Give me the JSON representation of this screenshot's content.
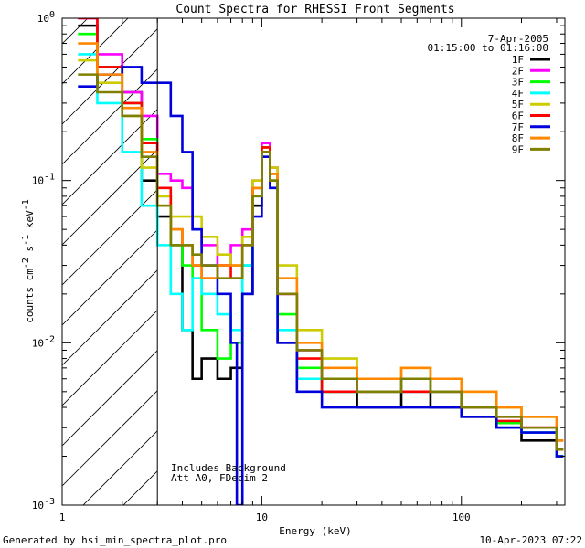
{
  "chart_data": {
    "type": "line",
    "title": "Count Spectra for RHESSI Front Segments",
    "xlabel": "Energy (keV)",
    "ylabel": "counts cm-2 s-1 keV-1",
    "ylabel_parts": {
      "base": "counts cm",
      "exp1": "-2",
      "mid": " s",
      "exp2": "-1",
      "mid2": " keV",
      "exp3": "-1"
    },
    "xscale": "log",
    "yscale": "log",
    "xlim": [
      1,
      330
    ],
    "ylim": [
      0.001,
      1
    ],
    "x_ticks": [
      {
        "value": 1,
        "label": "1"
      },
      {
        "value": 10,
        "label": "10"
      },
      {
        "value": 100,
        "label": "100"
      }
    ],
    "y_ticks": [
      {
        "value": 1,
        "label": "10",
        "exp": "0"
      },
      {
        "value": 0.1,
        "label": "10",
        "exp": "-1"
      },
      {
        "value": 0.01,
        "label": "10",
        "exp": "-2"
      },
      {
        "value": 0.001,
        "label": "10",
        "exp": "-3"
      }
    ],
    "hatched_region": {
      "x_range": [
        1,
        3
      ]
    },
    "annotations": {
      "date": "7-Apr-2005",
      "time_range": "01:15:00 to 01:16:00",
      "background_note": "Includes Background",
      "atten_note": "Att A0, FDecim 2"
    },
    "legend_position": "top-right",
    "series": [
      {
        "name": "1F",
        "color": "#000000",
        "values": [
          [
            1.2,
            0.9
          ],
          [
            1.5,
            0.5
          ],
          [
            2,
            0.35
          ],
          [
            2.5,
            0.1
          ],
          [
            3,
            0.06
          ],
          [
            3.5,
            0.04
          ],
          [
            4,
            0.012
          ],
          [
            4.5,
            0.006
          ],
          [
            5,
            0.008
          ],
          [
            6,
            0.006
          ],
          [
            7,
            0.007
          ],
          [
            8,
            0.02
          ],
          [
            9,
            0.07
          ],
          [
            10,
            0.15
          ],
          [
            11,
            0.1
          ],
          [
            12,
            0.01
          ],
          [
            15,
            0.006
          ],
          [
            20,
            0.005
          ],
          [
            30,
            0.004
          ],
          [
            50,
            0.005
          ],
          [
            70,
            0.004
          ],
          [
            100,
            0.0035
          ],
          [
            150,
            0.003
          ],
          [
            200,
            0.0025
          ],
          [
            300,
            0.002
          ]
        ]
      },
      {
        "name": "2F",
        "color": "#ff00ff",
        "values": [
          [
            1.2,
            1
          ],
          [
            1.5,
            0.6
          ],
          [
            2,
            0.35
          ],
          [
            2.5,
            0.25
          ],
          [
            3,
            0.11
          ],
          [
            3.5,
            0.1
          ],
          [
            4,
            0.09
          ],
          [
            4.5,
            0.05
          ],
          [
            5,
            0.04
          ],
          [
            6,
            0.03
          ],
          [
            7,
            0.04
          ],
          [
            8,
            0.05
          ],
          [
            9,
            0.1
          ],
          [
            10,
            0.17
          ],
          [
            11,
            0.12
          ],
          [
            12,
            0.02
          ],
          [
            15,
            0.009
          ],
          [
            20,
            0.006
          ],
          [
            30,
            0.005
          ],
          [
            50,
            0.006
          ],
          [
            70,
            0.005
          ],
          [
            100,
            0.004
          ],
          [
            150,
            0.0035
          ],
          [
            200,
            0.003
          ],
          [
            300,
            0.0025
          ]
        ]
      },
      {
        "name": "3F",
        "color": "#00ff00",
        "values": [
          [
            1.2,
            0.8
          ],
          [
            1.5,
            0.5
          ],
          [
            2,
            0.3
          ],
          [
            2.5,
            0.18
          ],
          [
            3,
            0.08
          ],
          [
            3.5,
            0.04
          ],
          [
            4,
            0.03
          ],
          [
            4.5,
            0.025
          ],
          [
            5,
            0.012
          ],
          [
            6,
            0.008
          ],
          [
            7,
            0.01
          ],
          [
            8,
            0.03
          ],
          [
            9,
            0.09
          ],
          [
            10,
            0.16
          ],
          [
            11,
            0.11
          ],
          [
            12,
            0.015
          ],
          [
            15,
            0.007
          ],
          [
            20,
            0.005
          ],
          [
            30,
            0.005
          ],
          [
            50,
            0.006
          ],
          [
            70,
            0.005
          ],
          [
            100,
            0.004
          ],
          [
            150,
            0.0032
          ],
          [
            200,
            0.0028
          ],
          [
            300,
            0.002
          ]
        ]
      },
      {
        "name": "4F",
        "color": "#00ffff",
        "values": [
          [
            1.2,
            0.6
          ],
          [
            1.5,
            0.3
          ],
          [
            2,
            0.15
          ],
          [
            2.5,
            0.07
          ],
          [
            3,
            0.04
          ],
          [
            3.5,
            0.02
          ],
          [
            4,
            0.012
          ],
          [
            4.5,
            0.025
          ],
          [
            5,
            0.02
          ],
          [
            6,
            0.015
          ],
          [
            7,
            0.012
          ],
          [
            8,
            0.03
          ],
          [
            9,
            0.08
          ],
          [
            10,
            0.14
          ],
          [
            11,
            0.1
          ],
          [
            12,
            0.012
          ],
          [
            15,
            0.006
          ],
          [
            20,
            0.005
          ],
          [
            30,
            0.005
          ],
          [
            50,
            0.005
          ],
          [
            70,
            0.005
          ],
          [
            100,
            0.004
          ],
          [
            150,
            0.003
          ],
          [
            200,
            0.0028
          ],
          [
            300,
            0.002
          ]
        ]
      },
      {
        "name": "5F",
        "color": "#cccc00",
        "values": [
          [
            1.2,
            0.55
          ],
          [
            1.5,
            0.4
          ],
          [
            2,
            0.25
          ],
          [
            2.5,
            0.12
          ],
          [
            3,
            0.08
          ],
          [
            3.5,
            0.06
          ],
          [
            4,
            0.06
          ],
          [
            4.5,
            0.06
          ],
          [
            5,
            0.045
          ],
          [
            6,
            0.035
          ],
          [
            7,
            0.03
          ],
          [
            8,
            0.045
          ],
          [
            9,
            0.1
          ],
          [
            10,
            0.16
          ],
          [
            11,
            0.12
          ],
          [
            12,
            0.03
          ],
          [
            15,
            0.012
          ],
          [
            20,
            0.008
          ],
          [
            30,
            0.006
          ],
          [
            50,
            0.007
          ],
          [
            70,
            0.006
          ],
          [
            100,
            0.005
          ],
          [
            150,
            0.004
          ],
          [
            200,
            0.0035
          ],
          [
            300,
            0.0025
          ]
        ]
      },
      {
        "name": "6F",
        "color": "#ff0000",
        "values": [
          [
            1.2,
            1
          ],
          [
            1.5,
            0.5
          ],
          [
            2,
            0.3
          ],
          [
            2.5,
            0.17
          ],
          [
            3,
            0.09
          ],
          [
            3.5,
            0.05
          ],
          [
            4,
            0.04
          ],
          [
            4.5,
            0.03
          ],
          [
            5,
            0.025
          ],
          [
            6,
            0.03
          ],
          [
            7,
            0.025
          ],
          [
            8,
            0.04
          ],
          [
            9,
            0.09
          ],
          [
            10,
            0.16
          ],
          [
            11,
            0.11
          ],
          [
            12,
            0.02
          ],
          [
            15,
            0.008
          ],
          [
            20,
            0.005
          ],
          [
            30,
            0.005
          ],
          [
            50,
            0.005
          ],
          [
            70,
            0.005
          ],
          [
            100,
            0.004
          ],
          [
            150,
            0.0033
          ],
          [
            200,
            0.003
          ],
          [
            300,
            0.0022
          ]
        ]
      },
      {
        "name": "7F",
        "color": "#0000dd",
        "values": [
          [
            1.2,
            0.38
          ],
          [
            1.5,
            0.45
          ],
          [
            2,
            0.5
          ],
          [
            2.5,
            0.4
          ],
          [
            3,
            0.4
          ],
          [
            3.5,
            0.25
          ],
          [
            4,
            0.15
          ],
          [
            4.5,
            0.05
          ],
          [
            5,
            0.03
          ],
          [
            6,
            0.02
          ],
          [
            7,
            0.01
          ],
          [
            7.5,
            0.001
          ],
          [
            8,
            0.02
          ],
          [
            9,
            0.06
          ],
          [
            10,
            0.14
          ],
          [
            11,
            0.09
          ],
          [
            12,
            0.01
          ],
          [
            15,
            0.005
          ],
          [
            20,
            0.004
          ],
          [
            30,
            0.004
          ],
          [
            50,
            0.004
          ],
          [
            70,
            0.004
          ],
          [
            100,
            0.0035
          ],
          [
            150,
            0.003
          ],
          [
            200,
            0.0028
          ],
          [
            300,
            0.002
          ]
        ]
      },
      {
        "name": "8F",
        "color": "#ff8800",
        "values": [
          [
            1.2,
            0.7
          ],
          [
            1.5,
            0.45
          ],
          [
            2,
            0.28
          ],
          [
            2.5,
            0.15
          ],
          [
            3,
            0.07
          ],
          [
            3.5,
            0.05
          ],
          [
            4,
            0.04
          ],
          [
            4.5,
            0.03
          ],
          [
            5,
            0.025
          ],
          [
            6,
            0.03
          ],
          [
            7,
            0.03
          ],
          [
            8,
            0.04
          ],
          [
            9,
            0.09
          ],
          [
            10,
            0.15
          ],
          [
            11,
            0.11
          ],
          [
            12,
            0.025
          ],
          [
            15,
            0.01
          ],
          [
            20,
            0.007
          ],
          [
            30,
            0.006
          ],
          [
            50,
            0.007
          ],
          [
            70,
            0.006
          ],
          [
            100,
            0.005
          ],
          [
            150,
            0.004
          ],
          [
            200,
            0.0035
          ],
          [
            300,
            0.0025
          ]
        ]
      },
      {
        "name": "9F",
        "color": "#808000",
        "values": [
          [
            1.2,
            0.45
          ],
          [
            1.5,
            0.35
          ],
          [
            2,
            0.25
          ],
          [
            2.5,
            0.14
          ],
          [
            3,
            0.07
          ],
          [
            3.5,
            0.04
          ],
          [
            4,
            0.04
          ],
          [
            4.5,
            0.035
          ],
          [
            5,
            0.03
          ],
          [
            6,
            0.025
          ],
          [
            7,
            0.025
          ],
          [
            8,
            0.04
          ],
          [
            9,
            0.08
          ],
          [
            10,
            0.15
          ],
          [
            11,
            0.1
          ],
          [
            12,
            0.02
          ],
          [
            15,
            0.009
          ],
          [
            20,
            0.006
          ],
          [
            30,
            0.005
          ],
          [
            50,
            0.006
          ],
          [
            70,
            0.005
          ],
          [
            100,
            0.004
          ],
          [
            150,
            0.0035
          ],
          [
            200,
            0.003
          ],
          [
            300,
            0.0022
          ]
        ]
      }
    ]
  },
  "footer": {
    "left": "Generated by hsi_min_spectra_plot.pro",
    "right": "10-Apr-2023 07:22"
  }
}
